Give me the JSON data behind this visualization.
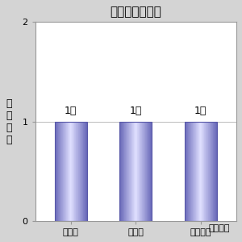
{
  "title": "ジャナル指の向",
  "categories": [
    "着な加",
    "化なし",
    "徐々に少"
  ],
  "values": [
    1,
    1,
    1
  ],
  "bar_labels": [
    "1人",
    "1人",
    "1人"
  ],
  "ylabel_lines": [
    "延",
    "べ",
    "人",
    "数"
  ],
  "xlabel_note": "来年の予",
  "ylim": [
    0,
    2
  ],
  "yticks": [
    0,
    1,
    2
  ],
  "bar_edge_color": "#6868b8",
  "bar_center_color": "#e0e0ff",
  "background_color": "#d4d4d4",
  "plot_bg_color": "#ffffff",
  "title_fontsize": 11,
  "label_fontsize": 9,
  "tick_fontsize": 8,
  "note_fontsize": 8
}
